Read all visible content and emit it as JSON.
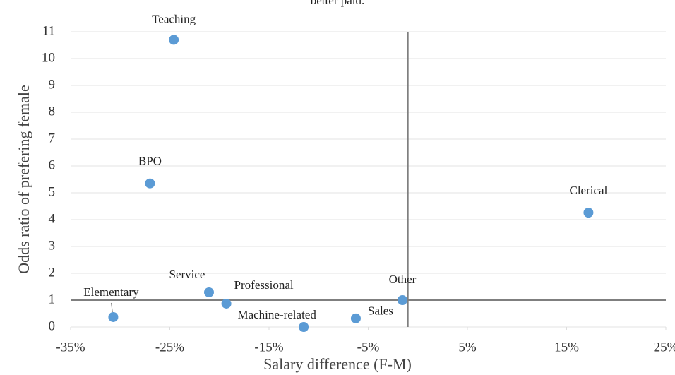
{
  "chart_data": {
    "type": "scatter",
    "title": "better paid.",
    "xlabel": "Salary difference (F-M)",
    "ylabel": "Odds ratio of prefering female",
    "color": "#5b9bd5",
    "grid": true,
    "xlim": [
      -35,
      25
    ],
    "ylim": [
      0,
      11
    ],
    "xticks": [
      {
        "value": -35,
        "label": "-35%"
      },
      {
        "value": -25,
        "label": "-25%"
      },
      {
        "value": -15,
        "label": "-15%"
      },
      {
        "value": -5,
        "label": "-5%"
      },
      {
        "value": 5,
        "label": "5%"
      },
      {
        "value": 15,
        "label": "15%"
      },
      {
        "value": 25,
        "label": "25%"
      }
    ],
    "yticks": [
      0,
      1,
      2,
      3,
      4,
      5,
      6,
      7,
      8,
      9,
      10,
      11
    ],
    "reference_lines": {
      "x": -1,
      "y": 1
    },
    "labels": [
      "Teaching",
      "BPO",
      "Clerical",
      "Service",
      "Professional",
      "Elementary",
      "Machine-related",
      "Sales",
      "Other"
    ],
    "x": [
      -24.6,
      -27,
      17.2,
      -21.05,
      -19.3,
      -30.7,
      -11.5,
      -6.25,
      -1.55
    ],
    "values": [
      10.7,
      5.35,
      4.26,
      1.29,
      0.87,
      0.37,
      0,
      0.32,
      1.0
    ]
  }
}
